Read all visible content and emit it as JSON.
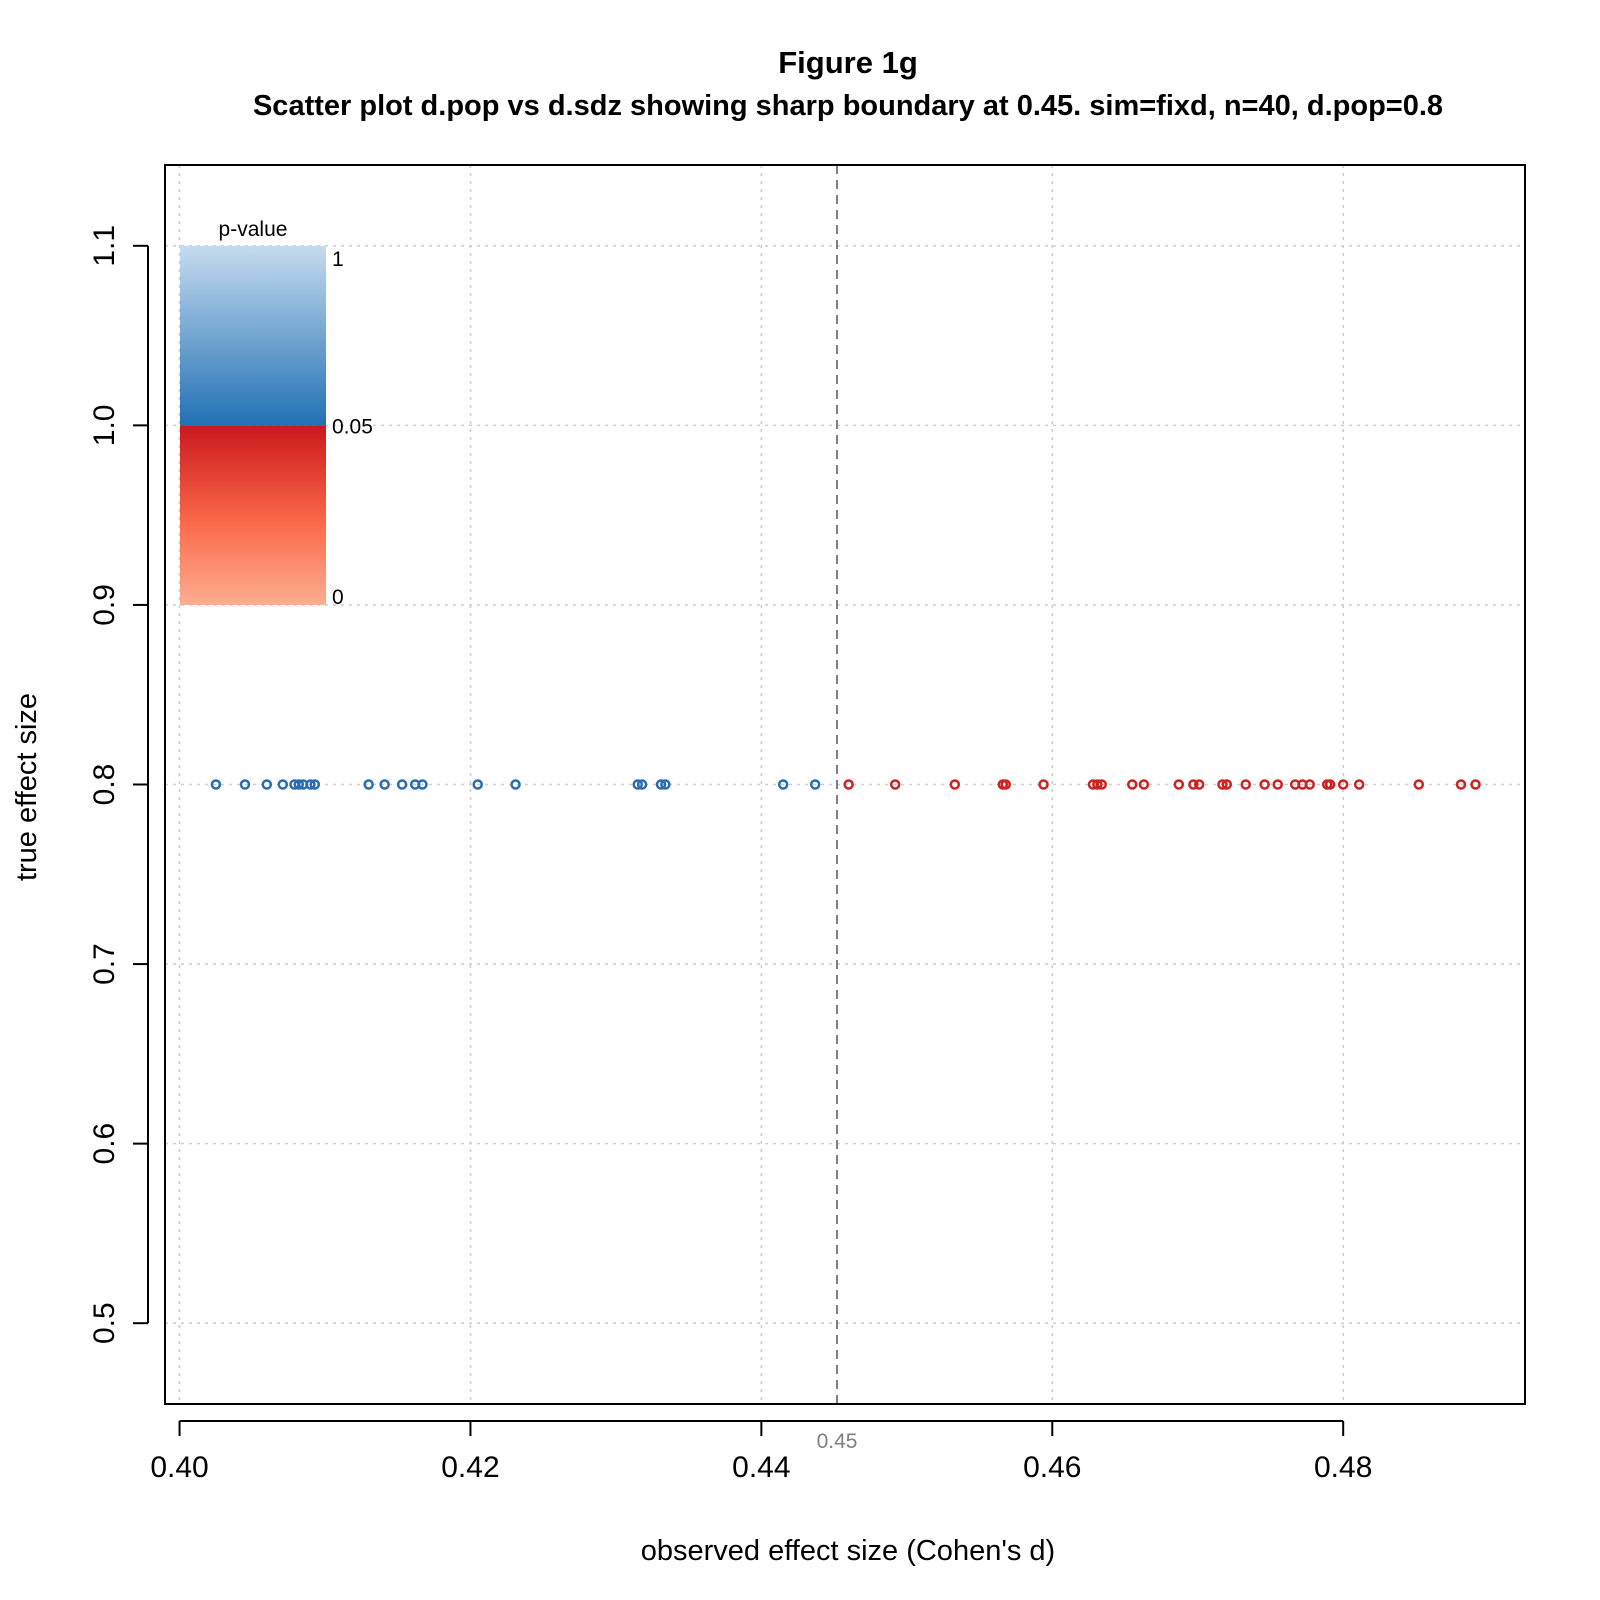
{
  "chart_data": {
    "type": "scatter",
    "title": "Figure 1g",
    "subtitle": "Scatter plot d.pop vs d.sdz showing sharp boundary at 0.45. sim=fixd, n=40, d.pop=0.8",
    "xlabel": "observed effect size (Cohen's d)",
    "ylabel": "true effect size",
    "xlim": [
      0.399,
      0.4925
    ],
    "ylim": [
      0.455,
      1.145
    ],
    "xticks": [
      0.4,
      0.42,
      0.44,
      0.46,
      0.48
    ],
    "xtick_labels": [
      "0.40",
      "0.42",
      "0.44",
      "0.46",
      "0.48"
    ],
    "yticks": [
      0.5,
      0.6,
      0.7,
      0.8,
      0.9,
      1.0,
      1.1
    ],
    "ytick_labels": [
      "0.5",
      "0.6",
      "0.7",
      "0.8",
      "0.9",
      "1.0",
      "1.1"
    ],
    "grid": true,
    "boundary": {
      "x": 0.4452,
      "label": "0.45",
      "color": "#808080"
    },
    "legend": {
      "title": "p-value",
      "labels": [
        "1",
        "0.05",
        "0"
      ],
      "placement": "top-left",
      "high_colors": [
        "#c6dbef",
        "#2171b5"
      ],
      "low_colors": [
        "#cb181d",
        "#fb6a4a",
        "#fcae91"
      ]
    },
    "colors": {
      "nonsignificant": "#2b6cb0",
      "significant": "#cc2222"
    },
    "series": [
      {
        "group": "p>0.05",
        "y": 0.8,
        "x": [
          0.4025,
          0.4045,
          0.406,
          0.4071,
          0.4079,
          0.4082,
          0.4085,
          0.409,
          0.4093,
          0.413,
          0.4141,
          0.4153,
          0.4162,
          0.4167,
          0.4205,
          0.4231,
          0.4315,
          0.4318,
          0.4331,
          0.4334,
          0.4415,
          0.4437
        ]
      },
      {
        "group": "p<0.05",
        "y": 0.8,
        "x": [
          0.446,
          0.4492,
          0.4533,
          0.4566,
          0.4568,
          0.4594,
          0.4628,
          0.4631,
          0.4634,
          0.4655,
          0.4663,
          0.4687,
          0.4697,
          0.4701,
          0.4717,
          0.472,
          0.4733,
          0.4746,
          0.4755,
          0.4767,
          0.4772,
          0.4777,
          0.4789,
          0.4791,
          0.48,
          0.4811,
          0.4852,
          0.4881,
          0.4891
        ]
      }
    ]
  }
}
